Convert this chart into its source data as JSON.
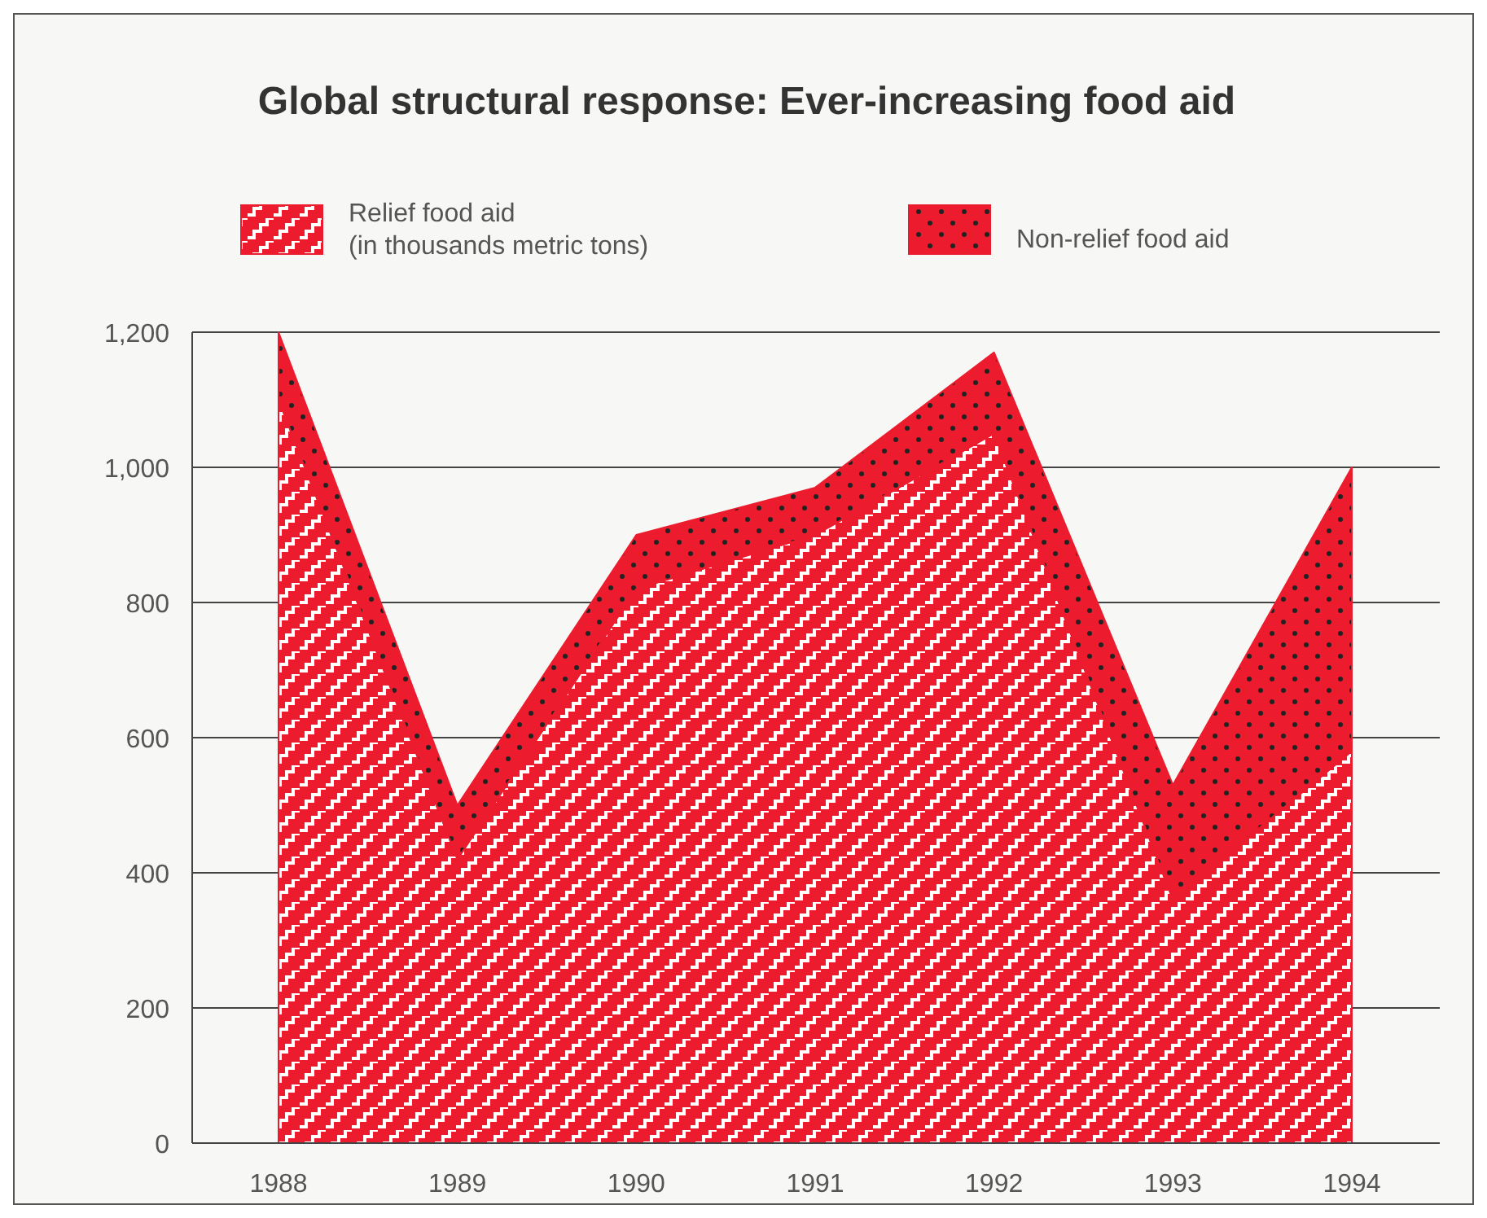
{
  "chart_data": {
    "type": "area",
    "stacked": true,
    "title": "Global structural response: Ever-increasing food aid",
    "categories": [
      "1988",
      "1989",
      "1990",
      "1991",
      "1992",
      "1993",
      "1994"
    ],
    "series": [
      {
        "name": "Relief food aid (in thousands metric tons)",
        "color": "#ec1c2e",
        "values": [
          1100,
          420,
          820,
          900,
          1050,
          360,
          580
        ]
      },
      {
        "name": "Non-relief food aid",
        "color": "#ec1c2e",
        "values": [
          100,
          80,
          80,
          70,
          120,
          170,
          420
        ]
      }
    ],
    "ylim": [
      0,
      1200
    ],
    "yticks": [
      0,
      {
        "value": 200,
        "label": "200"
      },
      {
        "value": 400,
        "label": "400"
      },
      {
        "value": 600,
        "label": "600"
      },
      {
        "value": 800,
        "label": "800"
      },
      {
        "value": 1000,
        "label": "1,000"
      },
      {
        "value": 1200,
        "label": "1,200"
      }
    ],
    "grid": "y",
    "legend": "top"
  }
}
